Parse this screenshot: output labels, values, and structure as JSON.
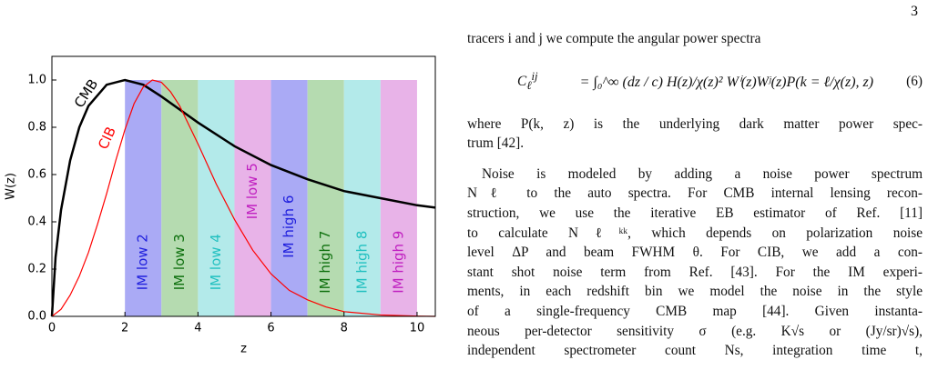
{
  "page_number": "3",
  "chart_data": {
    "type": "line",
    "xlabel": "z",
    "ylabel": "W(z)",
    "xlim": [
      0,
      10.5
    ],
    "ylim": [
      0,
      1.1
    ],
    "xticks": [
      0,
      2,
      4,
      6,
      8,
      10
    ],
    "yticks": [
      {
        "value": 0,
        "label": "0.0"
      },
      0.2,
      0.4,
      0.6,
      0.8,
      {
        "value": 1,
        "label": "1.0"
      }
    ],
    "series": [
      {
        "name": "CMB",
        "color": "#000000",
        "x": [
          0,
          0.1,
          0.25,
          0.5,
          0.75,
          1,
          1.5,
          2,
          2.5,
          3,
          4,
          5,
          6,
          7,
          8,
          9,
          10,
          10.5
        ],
        "values": [
          0,
          0.25,
          0.45,
          0.66,
          0.8,
          0.89,
          0.98,
          1.0,
          0.98,
          0.93,
          0.82,
          0.72,
          0.64,
          0.58,
          0.53,
          0.5,
          0.47,
          0.46
        ]
      },
      {
        "name": "CIB",
        "color": "#ff0000",
        "x": [
          0,
          0.25,
          0.5,
          0.75,
          1,
          1.25,
          1.5,
          1.75,
          2,
          2.25,
          2.5,
          2.75,
          3,
          3.25,
          3.5,
          4,
          4.5,
          5,
          5.5,
          6,
          6.5,
          7,
          7.5,
          8,
          9,
          10,
          10.5
        ],
        "values": [
          0,
          0.03,
          0.09,
          0.17,
          0.27,
          0.39,
          0.52,
          0.66,
          0.79,
          0.9,
          0.97,
          1.0,
          0.99,
          0.95,
          0.89,
          0.73,
          0.56,
          0.41,
          0.28,
          0.18,
          0.11,
          0.07,
          0.04,
          0.02,
          0.006,
          0.001,
          0
        ]
      }
    ],
    "bands": {
      "top": 1.0,
      "items": [
        {
          "label": "IM low 2",
          "range": [
            2,
            3
          ],
          "color": "#aaaaf5",
          "text_color": "#2020dd"
        },
        {
          "label": "IM low 3",
          "range": [
            3,
            4
          ],
          "color": "#b5dbb0",
          "text_color": "#0e700e"
        },
        {
          "label": "IM low 4",
          "range": [
            4,
            5
          ],
          "color": "#b3eaea",
          "text_color": "#22c0c0"
        },
        {
          "label": "IM low 5",
          "range": [
            5,
            6
          ],
          "color": "#e8b3e8",
          "text_color": "#c020c0"
        },
        {
          "label": "IM high 6",
          "range": [
            6,
            7
          ],
          "color": "#aaaaf5",
          "text_color": "#2020dd"
        },
        {
          "label": "IM high 7",
          "range": [
            7,
            8
          ],
          "color": "#b5dbb0",
          "text_color": "#0e700e"
        },
        {
          "label": "IM high 8",
          "range": [
            8,
            9
          ],
          "color": "#b3eaea",
          "text_color": "#22c0c0"
        },
        {
          "label": "IM high 9",
          "range": [
            9,
            10
          ],
          "color": "#e8b3e8",
          "text_color": "#c020c0"
        }
      ]
    }
  },
  "text": {
    "intro": "tracers i and j we compute the angular power spectra",
    "equation": {
      "lhs": "C",
      "lhs_sub": "ℓ",
      "lhs_sup": "ij",
      "body": "= ∫₀^∞ (dz / c) H(z)/χ(z)² Wⁱ(z)Wʲ(z)P(k = ℓ/χ(z), z)",
      "number": "(6)"
    },
    "paragraph1": [
      "where P(k, z) is the underlying dark matter power spec-",
      "trum [42]."
    ],
    "paragraph2": [
      "Noise is modeled by adding a noise power spectrum",
      "Nℓ to the auto spectra. For CMB internal lensing recon-",
      "struction, we use the iterative EB estimator of Ref. [11]",
      "to calculate Nℓᵏᵏ, which depends on polarization noise",
      "level ΔP and beam FWHM θ. For CIB, we add a con-",
      "stant shot noise term from Ref. [43]. For the IM experi-",
      "ments, in each redshift bin we model the noise in the style",
      "of a single-frequency CMB map [44]. Given instanta-",
      "neous per-detector sensitivity σ (e.g. K√s or (Jy/sr)√s),",
      "independent spectrometer count Ns, integration time t,"
    ]
  }
}
